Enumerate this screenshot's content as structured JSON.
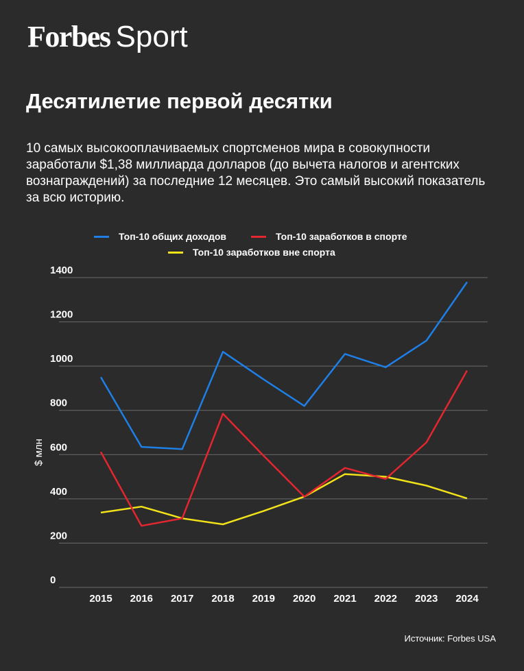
{
  "header": {
    "logo_brand": "Forbes",
    "logo_section": "Sport"
  },
  "title": "Десятилетие первой десятки",
  "subtitle": "10 самых высокооплачиваемых спортсменов мира в совокупности заработали $1,38 миллиарда долларов (до вычета налогов и агентских вознаграждений) за последние 12 месяцев. Это самый высокий показатель за всю историю.",
  "source": "Источник: Forbes USA",
  "colors": {
    "background": "#2b2b2b",
    "grid": "#6b6b6b",
    "text": "#ffffff"
  },
  "chart_data": {
    "type": "line",
    "title": "",
    "xlabel": "",
    "ylabel": "$ млн",
    "ylim": [
      0,
      1400
    ],
    "yticks": [
      "0",
      "200",
      "400",
      "600",
      "800",
      "1000",
      "1200",
      "1400"
    ],
    "categories": [
      "2015",
      "2016",
      "2017",
      "2018",
      "2019",
      "2020",
      "2021",
      "2022",
      "2023",
      "2024"
    ],
    "grid": true,
    "legend_position": "top-center",
    "series": [
      {
        "name": "Топ-10 общих доходов",
        "color": "#1e7fe6",
        "values": [
          950,
          635,
          625,
          1065,
          940,
          820,
          1055,
          995,
          1115,
          1380
        ]
      },
      {
        "name": "Топ-10 заработков в спорте",
        "color": "#e3262f",
        "values": [
          612,
          278,
          312,
          785,
          595,
          410,
          540,
          490,
          655,
          980
        ]
      },
      {
        "name": "Топ-10 заработков вне спорта",
        "color": "#f2e21a",
        "values": [
          338,
          365,
          312,
          285,
          345,
          410,
          512,
          500,
          460,
          402
        ]
      }
    ]
  }
}
